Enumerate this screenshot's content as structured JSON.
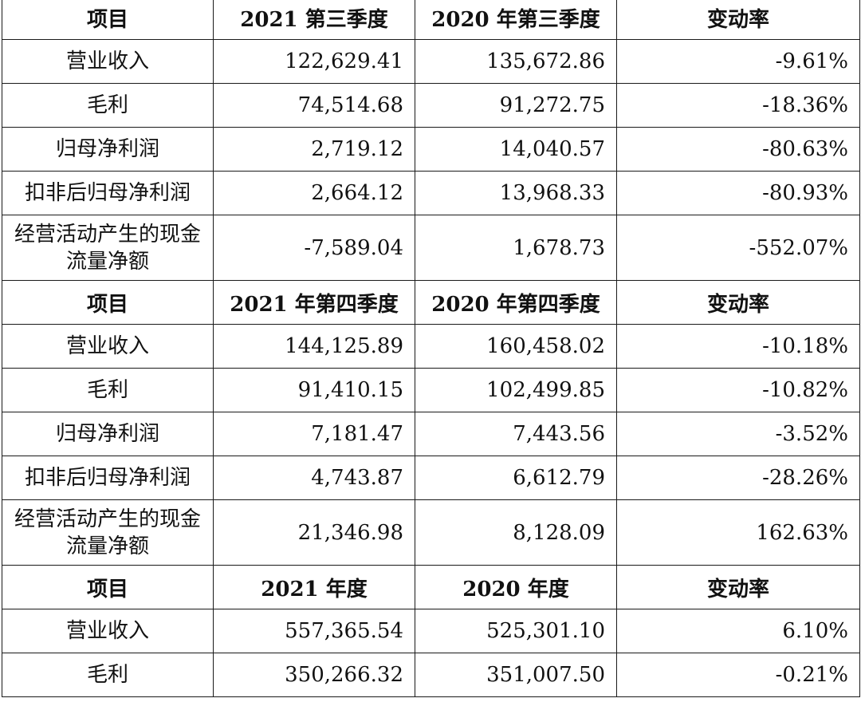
{
  "header_labels": [
    "项目",
    "变动率"
  ],
  "sections": [
    {
      "col1": "2021 第三季度",
      "col2": "2020 年第三季度",
      "rows": [
        {
          "item": "营业收入",
          "current": "122,629.41",
          "previous": "135,672.86",
          "change": "-9.61%"
        },
        {
          "item": "毛利",
          "current": "74,514.68",
          "previous": "91,272.75",
          "change": "-18.36%"
        },
        {
          "item": "归母净利润",
          "current": "2,719.12",
          "previous": "14,040.57",
          "change": "-80.63%"
        },
        {
          "item": "扣非后归母净利润",
          "current": "2,664.12",
          "previous": "13,968.33",
          "change": "-80.93%"
        },
        {
          "item": "经营活动产生的现金流量净额",
          "current": "-7,589.04",
          "previous": "1,678.73",
          "change": "-552.07%"
        }
      ]
    },
    {
      "col1": "2021 年第四季度",
      "col2": "2020 年第四季度",
      "rows": [
        {
          "item": "营业收入",
          "current": "144,125.89",
          "previous": "160,458.02",
          "change": "-10.18%"
        },
        {
          "item": "毛利",
          "current": "91,410.15",
          "previous": "102,499.85",
          "change": "-10.82%"
        },
        {
          "item": "归母净利润",
          "current": "7,181.47",
          "previous": "7,443.56",
          "change": "-3.52%"
        },
        {
          "item": "扣非后归母净利润",
          "current": "4,743.87",
          "previous": "6,612.79",
          "change": "-28.26%"
        },
        {
          "item": "经营活动产生的现金流量净额",
          "current": "21,346.98",
          "previous": "8,128.09",
          "change": "162.63%"
        }
      ]
    },
    {
      "col1": "2021 年度",
      "col2": "2020 年度",
      "rows": [
        {
          "item": "营业收入",
          "current": "557,365.54",
          "previous": "525,301.10",
          "change": "6.10%"
        },
        {
          "item": "毛利",
          "current": "350,266.32",
          "previous": "351,007.50",
          "change": "-0.21%"
        }
      ]
    }
  ]
}
